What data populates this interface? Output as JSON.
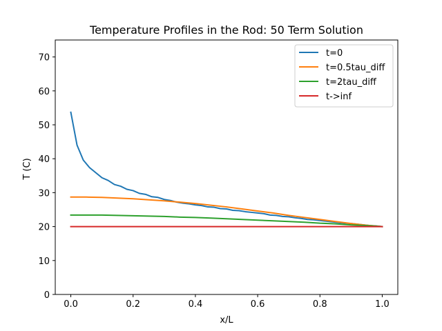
{
  "chart_data": {
    "type": "line",
    "title": "Temperature Profiles in the Rod: 50 Term Solution",
    "xlabel": "x/L",
    "ylabel": "T (C)",
    "xlim": [
      -0.05,
      1.05
    ],
    "ylim": [
      0,
      75
    ],
    "xticks": [
      0.0,
      0.2,
      0.4,
      0.6,
      0.8,
      1.0
    ],
    "xtick_labels": [
      "0.0",
      "0.2",
      "0.4",
      "0.6",
      "0.8",
      "1.0"
    ],
    "yticks": [
      0,
      10,
      20,
      30,
      40,
      50,
      60,
      70
    ],
    "ytick_labels": [
      "0",
      "10",
      "20",
      "30",
      "40",
      "50",
      "60",
      "70"
    ],
    "grid": false,
    "legend_position": "top-right",
    "series": [
      {
        "name": "t=0",
        "color": "#1f77b4",
        "x": [
          0.0,
          0.02,
          0.04,
          0.06,
          0.08,
          0.1,
          0.12,
          0.14,
          0.16,
          0.18,
          0.2,
          0.22,
          0.24,
          0.26,
          0.28,
          0.3,
          0.32,
          0.34,
          0.36,
          0.38,
          0.4,
          0.42,
          0.44,
          0.46,
          0.48,
          0.5,
          0.52,
          0.54,
          0.56,
          0.58,
          0.6,
          0.62,
          0.64,
          0.66,
          0.68,
          0.7,
          0.72,
          0.74,
          0.76,
          0.78,
          0.8,
          0.82,
          0.84,
          0.86,
          0.88,
          0.9,
          0.92,
          0.94,
          0.96,
          0.98,
          1.0
        ],
        "y": [
          53.7,
          44.0,
          39.6,
          37.4,
          35.9,
          34.4,
          33.6,
          32.4,
          31.9,
          31.0,
          30.6,
          29.8,
          29.5,
          28.8,
          28.6,
          28.0,
          27.7,
          27.2,
          26.9,
          26.7,
          26.4,
          26.2,
          25.8,
          25.7,
          25.3,
          25.2,
          24.8,
          24.7,
          24.4,
          24.2,
          24.0,
          23.8,
          23.4,
          23.3,
          23.0,
          22.9,
          22.6,
          22.4,
          22.1,
          22.0,
          21.8,
          21.6,
          21.4,
          21.2,
          21.0,
          20.9,
          20.7,
          20.5,
          20.3,
          20.2,
          20.0
        ]
      },
      {
        "name": "t=0.5tau_diff",
        "color": "#ff7f0e",
        "x": [
          0.0,
          0.05,
          0.1,
          0.15,
          0.2,
          0.25,
          0.3,
          0.35,
          0.4,
          0.45,
          0.5,
          0.55,
          0.6,
          0.65,
          0.7,
          0.75,
          0.8,
          0.85,
          0.9,
          0.95,
          1.0
        ],
        "y": [
          28.7,
          28.7,
          28.6,
          28.4,
          28.2,
          27.9,
          27.6,
          27.2,
          26.8,
          26.3,
          25.8,
          25.2,
          24.6,
          24.0,
          23.3,
          22.7,
          22.1,
          21.5,
          20.9,
          20.4,
          20.0
        ]
      },
      {
        "name": "t=2tau_diff",
        "color": "#2ca02c",
        "x": [
          0.0,
          0.05,
          0.1,
          0.15,
          0.2,
          0.25,
          0.3,
          0.35,
          0.4,
          0.45,
          0.5,
          0.55,
          0.6,
          0.65,
          0.7,
          0.75,
          0.8,
          0.85,
          0.9,
          0.95,
          1.0
        ],
        "y": [
          23.4,
          23.4,
          23.4,
          23.3,
          23.2,
          23.1,
          23.0,
          22.8,
          22.7,
          22.5,
          22.3,
          22.1,
          21.9,
          21.7,
          21.5,
          21.3,
          21.0,
          20.8,
          20.5,
          20.3,
          20.0
        ]
      },
      {
        "name": "t->inf",
        "color": "#d62728",
        "x": [
          0.0,
          1.0
        ],
        "y": [
          20.0,
          20.0
        ]
      }
    ]
  }
}
